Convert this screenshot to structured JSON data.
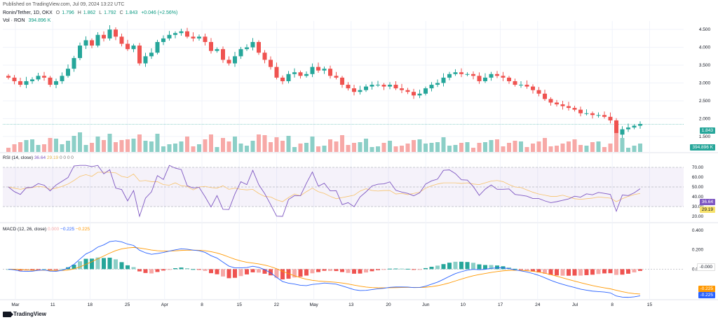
{
  "header": {
    "published": "Published on TradingView.com, Jul 09, 2024 13:22 UTC",
    "symbol": "Ronin/Tether, 1D, OKX",
    "o_label": "O",
    "o": "1.796",
    "h_label": "H",
    "h": "1.862",
    "l_label": "L",
    "l": "1.792",
    "c_label": "C",
    "c": "1.843",
    "change": "+0.046 (+2.56%)",
    "vol_label": "Vol · RON",
    "vol": "394.896 K"
  },
  "colors": {
    "up": "#26a69a",
    "down": "#ef5350",
    "up_vol": "#8ccfc7",
    "down_vol": "#f7a9a7",
    "rsi": "#7e57c2",
    "rsi_ma": "#f7c26b",
    "macd": "#2962ff",
    "signal": "#ff9800"
  },
  "price_axis": {
    "ticks": [
      "4.500",
      "4.000",
      "3.500",
      "3.000",
      "2.500",
      "2.000",
      "1.500"
    ]
  },
  "price_tag": "1.843",
  "vol_tag": "394.896 K",
  "rsi": {
    "title": "RSI (14, close)",
    "value": "36.64",
    "ma": "29.19",
    "extra": "0 0 0 0",
    "axis": [
      "70.00",
      "60.00",
      "50.00",
      "40.00",
      "30.00",
      "20.00"
    ],
    "tag_value": "36.64",
    "tag_ma": "29.19"
  },
  "macd": {
    "title": "MACD (12, 26, close)",
    "hist": "0.000",
    "macd": "−0.225",
    "signal": "−0.225",
    "axis": [
      "0.400",
      "0.200",
      "0.000"
    ],
    "tag_hist": "-0.000",
    "tag_macd": "-0.225",
    "tag_signal": "-0.225"
  },
  "x_axis": [
    "Mar",
    "11",
    "18",
    "25",
    "Apr",
    "8",
    "15",
    "22",
    "May",
    "13",
    "20",
    "Jun",
    "10",
    "17",
    "24",
    "Jul",
    "8",
    "15"
  ],
  "logo": "TradingView",
  "chart_data": {
    "type": "candlestick",
    "closes": [
      3.15,
      3.05,
      2.95,
      3.05,
      3.1,
      3.2,
      3.15,
      2.95,
      3.05,
      3.2,
      3.4,
      3.7,
      4.05,
      4.2,
      4.05,
      4.35,
      4.25,
      4.5,
      4.3,
      4.1,
      3.95,
      4.05,
      3.55,
      3.75,
      3.85,
      4.15,
      4.25,
      4.35,
      4.4,
      4.45,
      4.3,
      4.25,
      4.3,
      4.15,
      3.9,
      3.95,
      3.65,
      3.55,
      3.75,
      3.95,
      4.0,
      4.15,
      3.85,
      3.65,
      3.45,
      3.15,
      3.05,
      3.25,
      3.3,
      3.2,
      3.25,
      3.45,
      3.35,
      3.4,
      3.2,
      3.15,
      2.95,
      2.85,
      2.75,
      2.8,
      2.9,
      2.95,
      2.95,
      2.9,
      2.95,
      2.85,
      2.8,
      2.75,
      2.65,
      2.7,
      2.85,
      2.95,
      3.0,
      3.15,
      3.25,
      3.3,
      3.25,
      3.25,
      3.2,
      3.05,
      3.15,
      3.25,
      3.2,
      3.15,
      3.05,
      2.95,
      2.95,
      2.9,
      2.8,
      2.7,
      2.55,
      2.45,
      2.4,
      2.35,
      2.3,
      2.25,
      2.15,
      2.15,
      2.1,
      2.1,
      2.05,
      1.95,
      1.55,
      1.7,
      1.75,
      1.8,
      1.85
    ],
    "price_ylim": [
      1.3,
      4.7
    ],
    "rsi_range": [
      15,
      75
    ],
    "macd_range": [
      -0.3,
      0.45
    ]
  }
}
